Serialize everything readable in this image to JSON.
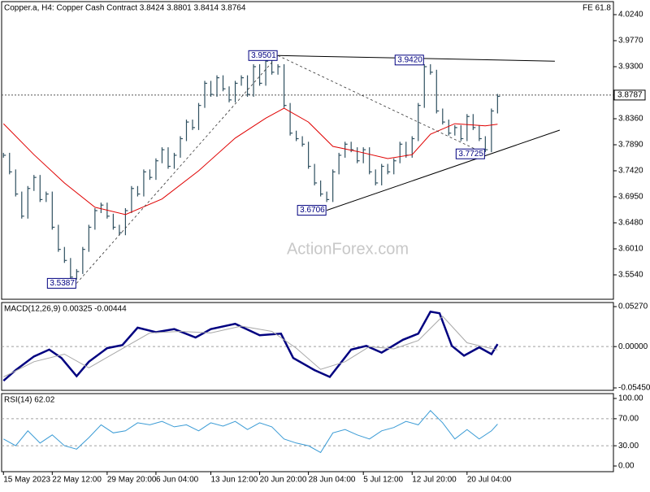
{
  "chart_data": [
    {
      "type": "ohlc",
      "title": "Copper.a, H4:  Copper Cash Contract  3.8424 3.8801 3.8414 3.8764",
      "annotation": "FE 61.8",
      "watermark": "ActionForex.com",
      "color": "#2f5060",
      "xlim": [
        -0.3,
        100
      ],
      "xticks": [
        {
          "value": 0,
          "label": "15 May 2023"
        },
        {
          "value": 8,
          "label": "22 May 12:00"
        },
        {
          "value": 17,
          "label": "29 May 20:00"
        },
        {
          "value": 25,
          "label": "6 Jun 04:00"
        },
        {
          "value": 34,
          "label": "13 Jun 12:00"
        },
        {
          "value": 42,
          "label": "20 Jun 20:00"
        },
        {
          "value": 50,
          "label": "28 Jun 04:00"
        },
        {
          "value": 59,
          "label": "5 Jul 12:00"
        },
        {
          "value": 67,
          "label": "12 Jul 20:00"
        },
        {
          "value": 76,
          "label": "20 Jul 04:00"
        }
      ],
      "ylim": [
        3.5099,
        4.0475
      ],
      "yticks": [
        {
          "value": 4.024,
          "label": "4.0240"
        },
        {
          "value": 3.977,
          "label": "3.9770"
        },
        {
          "value": 3.93,
          "label": "3.9300"
        },
        {
          "value": 3.836,
          "label": "3.8360"
        },
        {
          "value": 3.789,
          "label": "3.7890"
        },
        {
          "value": 3.742,
          "label": "3.7420"
        },
        {
          "value": 3.695,
          "label": "3.6950"
        },
        {
          "value": 3.648,
          "label": "3.6480"
        },
        {
          "value": 3.601,
          "label": "3.6010"
        },
        {
          "value": 3.554,
          "label": "3.5540"
        }
      ],
      "values": [
        3.77,
        3.74,
        3.7,
        3.66,
        3.71,
        3.73,
        3.69,
        3.7,
        3.64,
        3.6,
        3.58,
        3.55,
        3.56,
        3.6,
        3.64,
        3.67,
        3.68,
        3.66,
        3.64,
        3.63,
        3.67,
        3.71,
        3.7,
        3.74,
        3.73,
        3.76,
        3.78,
        3.75,
        3.77,
        3.8,
        3.83,
        3.82,
        3.86,
        3.9,
        3.88,
        3.91,
        3.89,
        3.87,
        3.9,
        3.91,
        3.88,
        3.93,
        3.9,
        3.94,
        3.92,
        3.93,
        3.86,
        3.81,
        3.8,
        3.79,
        3.75,
        3.72,
        3.7,
        3.69,
        3.74,
        3.77,
        3.79,
        3.78,
        3.76,
        3.78,
        3.74,
        3.72,
        3.75,
        3.74,
        3.76,
        3.79,
        3.77,
        3.8,
        3.86,
        3.93,
        3.92,
        3.85,
        3.83,
        3.81,
        3.82,
        3.8,
        3.84,
        3.82,
        3.8,
        3.78,
        3.85,
        3.8764
      ],
      "ma": {
        "color": "#e00000",
        "x": [
          0,
          5,
          10,
          15,
          20,
          26,
          32,
          38,
          43,
          46,
          50,
          54,
          58,
          63,
          67,
          70,
          74,
          79,
          81
        ],
        "values": [
          3.827,
          3.771,
          3.72,
          3.676,
          3.663,
          3.691,
          3.742,
          3.801,
          3.837,
          3.855,
          3.83,
          3.786,
          3.777,
          3.764,
          3.771,
          3.808,
          3.827,
          3.823,
          3.826
        ]
      },
      "pivots": [
        {
          "x": 12,
          "value": 3.5387,
          "label": "3.5387"
        },
        {
          "x": 45,
          "value": 3.9501,
          "label": "3.9501"
        },
        {
          "x": 53,
          "value": 3.6706,
          "label": "3.6706"
        },
        {
          "x": 69,
          "value": 3.942,
          "label": "3.9420"
        },
        {
          "x": 79,
          "value": 3.7725,
          "label": "3.7725"
        }
      ],
      "trendlines": [
        {
          "x": [
            45,
            90.4
          ],
          "values": [
            3.9501,
            3.94
          ]
        },
        {
          "x": [
            53,
            91.2
          ],
          "values": [
            3.6706,
            3.8154
          ]
        }
      ],
      "dashed": [
        {
          "x": [
            12,
            45
          ],
          "values": [
            3.5387,
            3.9501
          ]
        },
        {
          "x": [
            45,
            79
          ],
          "values": [
            3.9501,
            3.7725
          ]
        }
      ],
      "last": {
        "value": 3.8787,
        "label": "3.8787"
      }
    },
    {
      "type": "line",
      "title": "MACD(12,26,9) 0.00325 -0.00444",
      "grid": true,
      "ylim": [
        -0.0577,
        0.0581
      ],
      "yticks": [
        {
          "value": 0.0527,
          "label": "0.05270"
        },
        {
          "value": 0,
          "label": "0.00000"
        },
        {
          "value": -0.0545,
          "label": "-0.05450"
        }
      ],
      "series": [
        {
          "color": "#000080",
          "width": 2.5,
          "x": [
            0,
            2,
            5,
            7.5,
            9.5,
            12,
            14,
            17,
            19.5,
            22,
            25,
            28,
            31.5,
            34,
            38,
            42,
            45.5,
            47.5,
            51,
            53.5,
            57,
            59.5,
            62,
            65.5,
            68,
            70,
            71.5,
            73.5,
            75.5,
            78,
            80,
            81
          ],
          "values": [
            -0.045,
            -0.031,
            -0.013,
            -0.004,
            -0.015,
            -0.039,
            -0.02,
            -0.002,
            0.002,
            0.025,
            0.019,
            0.023,
            0.012,
            0.023,
            0.03,
            0.015,
            0.017,
            -0.015,
            -0.031,
            -0.04,
            -0.004,
            0.001,
            -0.008,
            0.009,
            0.017,
            0.046,
            0.044,
            0.001,
            -0.012,
            -0.001,
            -0.01,
            0.00325
          ]
        },
        {
          "color": "#a8a8a8",
          "width": 1,
          "x": [
            0,
            5,
            10,
            14,
            19,
            24,
            29,
            34,
            39,
            44,
            48,
            52,
            56,
            60,
            64,
            68,
            72,
            76,
            81
          ],
          "values": [
            -0.04,
            -0.02,
            -0.01,
            -0.028,
            -0.005,
            0.018,
            0.02,
            0.018,
            0.027,
            0.02,
            -0.002,
            -0.03,
            -0.02,
            0,
            -0.003,
            0.008,
            0.04,
            0.005,
            -0.00444
          ]
        }
      ]
    },
    {
      "type": "line",
      "title": "RSI(14) 62.02",
      "grid": true,
      "ylim": [
        -8.4,
        107.2
      ],
      "yticks": [
        {
          "value": 100,
          "label": "100.00"
        },
        {
          "value": 70,
          "label": "70.00"
        },
        {
          "value": 30,
          "label": "30.00"
        },
        {
          "value": 0,
          "label": "0.00"
        }
      ],
      "series": [
        {
          "color": "#3a9bd5",
          "width": 1,
          "x": [
            0,
            2,
            4,
            6,
            8,
            10,
            12,
            14,
            16,
            18,
            20,
            22,
            24,
            26,
            28,
            30,
            32,
            34,
            36,
            38,
            40,
            42,
            44,
            46,
            48,
            50,
            52,
            54,
            56,
            58,
            60,
            62,
            64,
            66,
            68,
            70,
            72,
            74,
            76,
            78,
            80,
            81
          ],
          "values": [
            40,
            30,
            52,
            34,
            46,
            30,
            25,
            42,
            61,
            49,
            52,
            64,
            61,
            66,
            58,
            61,
            52,
            64,
            59,
            66,
            54,
            64,
            58,
            40,
            34,
            30,
            20,
            49,
            54,
            46,
            40,
            52,
            57,
            66,
            61,
            82,
            64,
            40,
            54,
            40,
            52,
            62.02
          ]
        }
      ]
    }
  ]
}
